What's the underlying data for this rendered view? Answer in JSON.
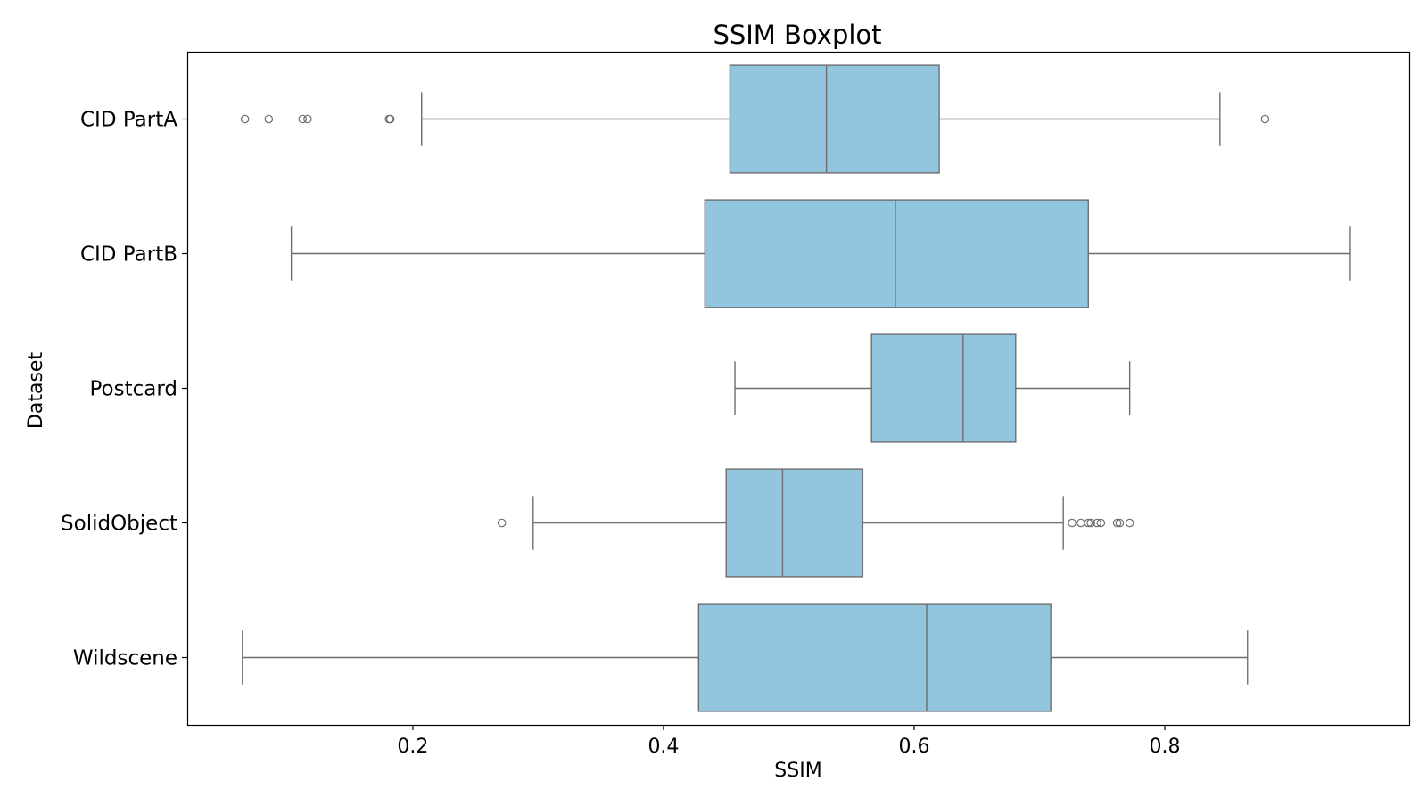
{
  "chart_data": {
    "type": "boxplot",
    "orientation": "horizontal",
    "title": "SSIM Boxplot",
    "xlabel": "SSIM",
    "ylabel": "Dataset",
    "xlim": [
      0.02,
      0.995
    ],
    "xticks": [
      0.2,
      0.4,
      0.6,
      0.8
    ],
    "xtick_labels": [
      "0.2",
      "0.4",
      "0.6",
      "0.8"
    ],
    "categories": [
      "CID PartA",
      "CID PartB",
      "Postcard",
      "SolidObject",
      "Wildscene"
    ],
    "grid": false,
    "box_color": "#92c6de",
    "line_color": "#6e6e6e",
    "series": [
      {
        "category": "CID PartA",
        "whisker_low": 0.207,
        "q1": 0.453,
        "median": 0.53,
        "q3": 0.62,
        "whisker_high": 0.844,
        "outliers": [
          0.066,
          0.085,
          0.112,
          0.116,
          0.181,
          0.182,
          0.88
        ]
      },
      {
        "category": "CID PartB",
        "whisker_low": 0.103,
        "q1": 0.433,
        "median": 0.585,
        "q3": 0.739,
        "whisker_high": 0.948,
        "outliers": []
      },
      {
        "category": "Postcard",
        "whisker_low": 0.457,
        "q1": 0.566,
        "median": 0.639,
        "q3": 0.681,
        "whisker_high": 0.772,
        "outliers": []
      },
      {
        "category": "SolidObject",
        "whisker_low": 0.296,
        "q1": 0.45,
        "median": 0.495,
        "q3": 0.559,
        "whisker_high": 0.719,
        "outliers": [
          0.271,
          0.726,
          0.733,
          0.739,
          0.741,
          0.746,
          0.749,
          0.762,
          0.764,
          0.772
        ]
      },
      {
        "category": "Wildscene",
        "whisker_low": 0.064,
        "q1": 0.428,
        "median": 0.61,
        "q3": 0.709,
        "whisker_high": 0.866,
        "outliers": []
      }
    ]
  }
}
